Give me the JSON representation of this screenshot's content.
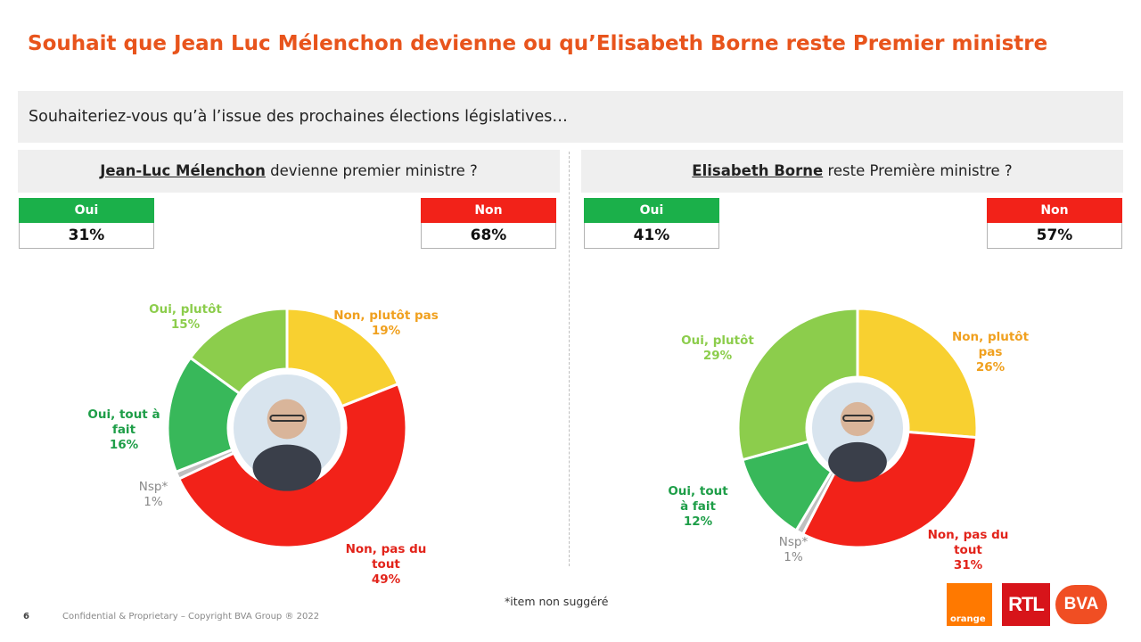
{
  "title": "Souhait que Jean Luc Mélenchon devienne ou qu’Elisabeth Borne reste Premier ministre",
  "question": "Souhaiteriez-vous qu’à l’issue des prochaines élections législatives…",
  "panels": [
    {
      "name_bold": "Jean-Luc Mélenchon",
      "question_rest": " devienne premier ministre ?",
      "oui_label": "Oui",
      "oui_value": "31%",
      "non_label": "Non",
      "non_value": "68%"
    },
    {
      "name_bold": "Elisabeth Borne",
      "question_rest": " reste Première ministre ?",
      "oui_label": "Oui",
      "oui_value": "41%",
      "non_label": "Non",
      "non_value": "57%"
    }
  ],
  "chart_data": [
    {
      "type": "pie",
      "subject": "Jean-Luc Mélenchon",
      "slices": [
        {
          "label": [
            "Non, plutôt pas"
          ],
          "value": 19,
          "color": "#f8d030"
        },
        {
          "label": [
            "Non, pas du",
            "tout"
          ],
          "value": 49,
          "color": "#f22219"
        },
        {
          "label": [
            "Nsp*"
          ],
          "value": 1,
          "color": "#bfbfbf"
        },
        {
          "label": [
            "Oui, tout à",
            "fait"
          ],
          "value": 16,
          "color": "#38b85a"
        },
        {
          "label": [
            "Oui, plutôt"
          ],
          "value": 15,
          "color": "#8ccd4c"
        }
      ]
    },
    {
      "type": "pie",
      "subject": "Elisabeth Borne",
      "slices": [
        {
          "label": [
            "Non, plutôt",
            "pas"
          ],
          "value": 26,
          "color": "#f8d030"
        },
        {
          "label": [
            "Non, pas du",
            "tout"
          ],
          "value": 31,
          "color": "#f22219"
        },
        {
          "label": [
            "Nsp*"
          ],
          "value": 1,
          "color": "#bfbfbf"
        },
        {
          "label": [
            "Oui, tout",
            "à fait"
          ],
          "value": 12,
          "color": "#38b85a"
        },
        {
          "label": [
            "Oui, plutôt"
          ],
          "value": 29,
          "color": "#8ccd4c"
        }
      ]
    }
  ],
  "label_colors": {
    "Non, plutôt pas": "#f0a01e",
    "Non, pas du tout": "#e2231a",
    "Nsp": "#8a8a8a",
    "Oui, tout à fait": "#1e9e48",
    "Oui, plutôt": "#8ccd4c"
  },
  "footnote": "*item non suggéré",
  "page_number": "6",
  "confidential": "Confidential & Proprietary – Copyright BVA Group ®  2022",
  "logos": {
    "orange": "orange",
    "rtl": "RTL",
    "bva": "BVA"
  }
}
